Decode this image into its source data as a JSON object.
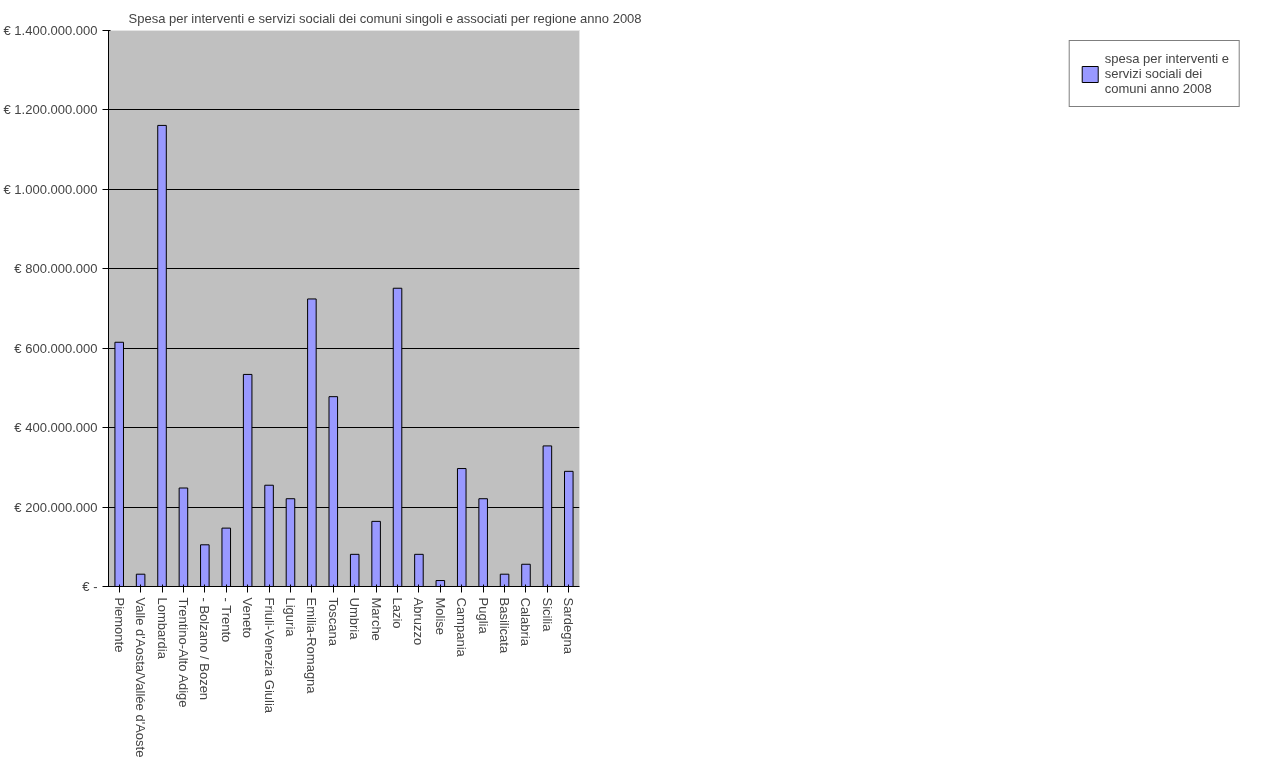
{
  "chart_data": {
    "type": "bar",
    "title": "Spesa per interventi e servizi sociali dei comuni singoli e associati per regione anno 2008",
    "categories": [
      "Piemonte",
      "Valle d'Aosta/Vallée d'Aoste",
      "Lombardia",
      "Trentino-Alto Adige",
      "- Bolzano / Bozen",
      "- Trento",
      "Veneto",
      "Friuli-Venezia Giulia",
      "Liguria",
      "Emilia-Romagna",
      "Toscana",
      "Umbria",
      "Marche",
      "Lazio",
      "Abruzzo",
      "Molise",
      "Campania",
      "Puglia",
      "Basilicata",
      "Calabria",
      "Sicilia",
      "Sardegna"
    ],
    "series": [
      {
        "name": "spesa per interventi e servizi sociali dei comuni anno 2008",
        "color": "#9999ff",
        "values": [
          615000000,
          31000000,
          1161000000,
          248000000,
          105000000,
          147000000,
          534000000,
          255000000,
          221000000,
          724000000,
          478000000,
          81000000,
          164000000,
          751000000,
          81000000,
          15000000,
          297000000,
          221000000,
          31000000,
          56000000,
          354000000,
          290000000
        ]
      }
    ],
    "ylim": [
      0,
      1400000000
    ],
    "yticks": [
      {
        "value": 0,
        "label": "€ -"
      },
      {
        "value": 200000000,
        "label": "€ 200.000.000"
      },
      {
        "value": 400000000,
        "label": "€ 400.000.000"
      },
      {
        "value": 600000000,
        "label": "€ 600.000.000"
      },
      {
        "value": 800000000,
        "label": "€ 800.000.000"
      },
      {
        "value": 1000000000,
        "label": "€ 1.000.000.000"
      },
      {
        "value": 1200000000,
        "label": "€ 1.200.000.000"
      },
      {
        "value": 1400000000,
        "label": "€ 1.400.000.000"
      }
    ],
    "grid": "y",
    "legend": "right"
  }
}
